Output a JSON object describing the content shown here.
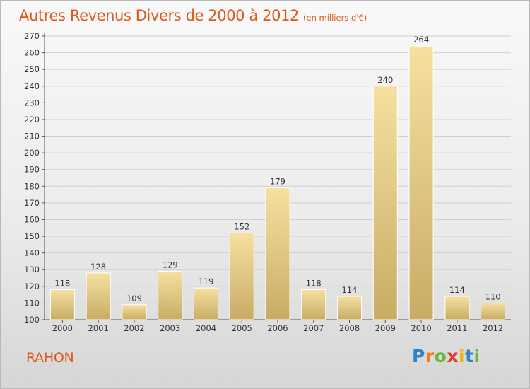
{
  "header": {
    "title": "Autres Revenus Divers de 2000 à 2012",
    "unit": "(en milliers d'€)"
  },
  "footer": {
    "place": "RAHON",
    "logo": {
      "letters": [
        "P",
        "r",
        "o",
        "x",
        "i",
        "t",
        "i"
      ],
      "colors": [
        "#2f84c8",
        "#f07c1a",
        "#6ab540",
        "#e23a2e",
        "#f2b21c",
        "#2f84c8",
        "#6ab540"
      ]
    }
  },
  "colors": {
    "accent": "#dc5a1e",
    "bar_light": "#f6e0a0",
    "bar_dark": "#c8ac65",
    "bar_edge": "#ffffff",
    "grid": "#d0d0d0",
    "axis": "#555555"
  },
  "chart_data": {
    "type": "bar",
    "title": "Autres Revenus Divers de 2000 à 2012",
    "subtitle": "(en milliers d'€)",
    "categories": [
      "2000",
      "2001",
      "2002",
      "2003",
      "2004",
      "2005",
      "2006",
      "2007",
      "2008",
      "2009",
      "2010",
      "2011",
      "2012"
    ],
    "values": [
      118,
      128,
      109,
      129,
      119,
      152,
      179,
      118,
      114,
      240,
      264,
      114,
      110
    ],
    "ylim": [
      100,
      270
    ],
    "yticks": [
      100,
      110,
      120,
      130,
      140,
      150,
      160,
      170,
      180,
      190,
      200,
      210,
      220,
      230,
      240,
      250,
      260,
      270
    ],
    "grid": true,
    "data_labels": true
  }
}
